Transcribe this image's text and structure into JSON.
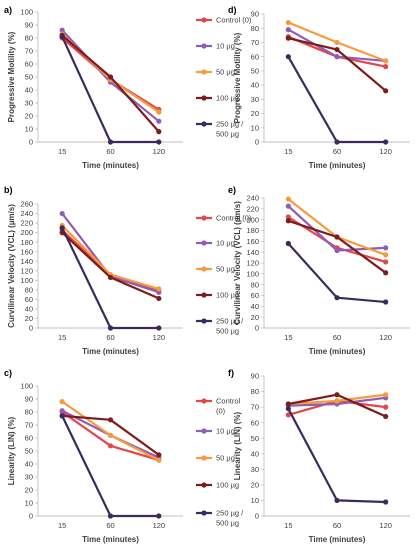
{
  "series_colors": {
    "Control (0)": "#e0484a",
    "10 µg": "#8e5db4",
    "50 µg": "#f79a3e",
    "100 µg": "#7d1c1c",
    "250 µg / 500 µg": "#3c2a5e"
  },
  "chart_data": [
    {
      "panel": "a)",
      "type": "line",
      "xlabel": "Time (minutes)",
      "ylabel": "Progressive Motility (%)",
      "x": [
        15,
        60,
        120
      ],
      "ylim": [
        0,
        100
      ],
      "yticks": [
        0,
        10,
        20,
        30,
        40,
        50,
        60,
        70,
        80,
        90,
        100
      ],
      "legend": true,
      "series": [
        {
          "name": "Control (0)",
          "values": [
            80,
            48,
            25
          ]
        },
        {
          "name": "10 µg",
          "values": [
            86,
            46,
            16
          ]
        },
        {
          "name": "50 µg",
          "values": [
            83,
            48,
            23
          ]
        },
        {
          "name": "100 µg",
          "values": [
            82,
            50,
            8
          ]
        },
        {
          "name": "250 µg / 500 µg",
          "values": [
            81,
            0,
            0
          ]
        }
      ]
    },
    {
      "panel": "d)",
      "type": "line",
      "xlabel": "Time (minutes)",
      "ylabel": "Progressive Motility (%)",
      "x": [
        15,
        60,
        120
      ],
      "ylim": [
        0,
        90
      ],
      "yticks": [
        0,
        10,
        20,
        30,
        40,
        50,
        60,
        70,
        80,
        90
      ],
      "legend": false,
      "series": [
        {
          "name": "Control (0)",
          "values": [
            74,
            60,
            53
          ]
        },
        {
          "name": "10 µg",
          "values": [
            79,
            60,
            57
          ]
        },
        {
          "name": "50 µg",
          "values": [
            84,
            70,
            57
          ]
        },
        {
          "name": "100 µg",
          "values": [
            73,
            65,
            36
          ]
        },
        {
          "name": "250 µg / 500 µg",
          "values": [
            60,
            0,
            0
          ]
        }
      ]
    },
    {
      "panel": "b)",
      "type": "line",
      "xlabel": "Time (minutes)",
      "ylabel": "Curvilinear Velocity (VCL) (µm/s)",
      "x": [
        15,
        60,
        120
      ],
      "ylim": [
        0,
        260
      ],
      "yticks": [
        0,
        20,
        40,
        60,
        80,
        100,
        120,
        140,
        160,
        180,
        200,
        220,
        240,
        260
      ],
      "legend": true,
      "series": [
        {
          "name": "Control (0)",
          "values": [
            205,
            110,
            80
          ]
        },
        {
          "name": "10 µg",
          "values": [
            240,
            108,
            75
          ]
        },
        {
          "name": "50 µg",
          "values": [
            215,
            112,
            82
          ]
        },
        {
          "name": "100 µg",
          "values": [
            200,
            106,
            62
          ]
        },
        {
          "name": "250 µg / 500 µg",
          "values": [
            210,
            0,
            0
          ]
        }
      ]
    },
    {
      "panel": "e)",
      "type": "line",
      "xlabel": "Time (minutes)",
      "ylabel": "Curvilinear Velocity (VCL) (µm/s)",
      "x": [
        15,
        60,
        120
      ],
      "ylim": [
        0,
        240
      ],
      "yticks": [
        0,
        20,
        40,
        60,
        80,
        100,
        120,
        140,
        160,
        180,
        200,
        220,
        240
      ],
      "legend": false,
      "series": [
        {
          "name": "Control (0)",
          "values": [
            205,
            148,
            122
          ]
        },
        {
          "name": "10 µg",
          "values": [
            225,
            143,
            148
          ]
        },
        {
          "name": "50 µg",
          "values": [
            238,
            168,
            135
          ]
        },
        {
          "name": "100 µg",
          "values": [
            198,
            168,
            102
          ]
        },
        {
          "name": "250 µg / 500 µg",
          "values": [
            156,
            56,
            48
          ]
        }
      ]
    },
    {
      "panel": "c)",
      "type": "line",
      "xlabel": "Time (minutes)",
      "ylabel": "Linearity (LIN) (%)",
      "x": [
        15,
        60,
        120
      ],
      "ylim": [
        0,
        100
      ],
      "yticks": [
        0,
        10,
        20,
        30,
        40,
        50,
        60,
        70,
        80,
        90,
        100
      ],
      "legend": true,
      "series": [
        {
          "name": "Control (0)",
          "values": [
            80,
            54,
            43
          ]
        },
        {
          "name": "10 µg",
          "values": [
            81,
            62,
            45
          ]
        },
        {
          "name": "50 µg",
          "values": [
            88,
            62,
            43
          ]
        },
        {
          "name": "100 µg",
          "values": [
            77,
            74,
            47
          ]
        },
        {
          "name": "250 µg / 500 µg",
          "values": [
            77,
            0,
            0
          ]
        }
      ]
    },
    {
      "panel": "f)",
      "type": "line",
      "xlabel": "Time (minutes)",
      "ylabel": "Linearity (LIN) (%)",
      "x": [
        15,
        60,
        120
      ],
      "ylim": [
        0,
        90
      ],
      "yticks": [
        0,
        10,
        20,
        30,
        40,
        50,
        60,
        70,
        80,
        90
      ],
      "legend": false,
      "series": [
        {
          "name": "Control (0)",
          "values": [
            65,
            74,
            70
          ]
        },
        {
          "name": "10 µg",
          "values": [
            71,
            72,
            76
          ]
        },
        {
          "name": "50 µg",
          "values": [
            72,
            74,
            78
          ]
        },
        {
          "name": "100 µg",
          "values": [
            72,
            78,
            64
          ]
        },
        {
          "name": "250 µg / 500 µg",
          "values": [
            69,
            10,
            9
          ]
        }
      ]
    }
  ]
}
